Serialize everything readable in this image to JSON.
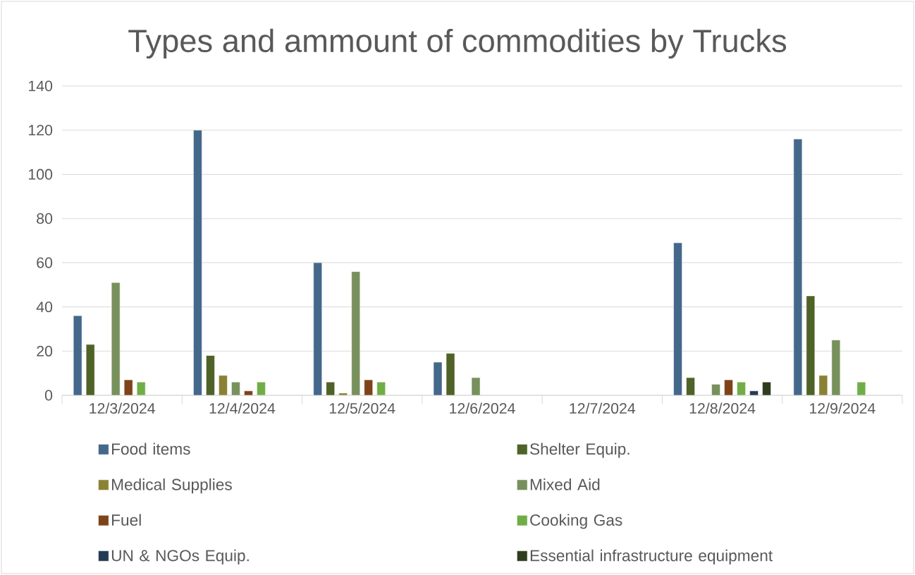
{
  "chart_data": {
    "type": "bar",
    "title": "Types and ammount of commodities by Trucks",
    "categories": [
      "12/3/2024",
      "12/4/2024",
      "12/5/2024",
      "12/6/2024",
      "12/7/2024",
      "12/8/2024",
      "12/9/2024"
    ],
    "series": [
      {
        "name": "Food items",
        "color": "#44688a",
        "values": [
          36,
          120,
          60,
          15,
          null,
          69,
          116
        ]
      },
      {
        "name": "Shelter Equip.",
        "color": "#4f6228",
        "values": [
          23,
          18,
          6,
          19,
          null,
          8,
          45
        ]
      },
      {
        "name": "Medical Supplies",
        "color": "#8b8134",
        "values": [
          null,
          9,
          1,
          null,
          null,
          null,
          9
        ]
      },
      {
        "name": "Mixed Aid",
        "color": "#77905c",
        "values": [
          51,
          6,
          56,
          8,
          null,
          5,
          25
        ]
      },
      {
        "name": "Fuel",
        "color": "#7e4319",
        "values": [
          7,
          2,
          7,
          null,
          null,
          7,
          null
        ]
      },
      {
        "name": "Cooking Gas",
        "color": "#70ad47",
        "values": [
          6,
          6,
          6,
          null,
          null,
          6,
          6
        ]
      },
      {
        "name": "UN & NGOs Equip.",
        "color": "#253a54",
        "values": [
          null,
          null,
          null,
          null,
          null,
          2,
          null
        ]
      },
      {
        "name": "Essential infrastructure equipment",
        "color": "#2f3d1e",
        "values": [
          null,
          null,
          null,
          null,
          null,
          6,
          null
        ]
      }
    ],
    "ylim": [
      0,
      140
    ],
    "yticks": [
      0,
      20,
      40,
      60,
      80,
      100,
      120,
      140
    ],
    "grid": "y",
    "legend": "bottom"
  }
}
